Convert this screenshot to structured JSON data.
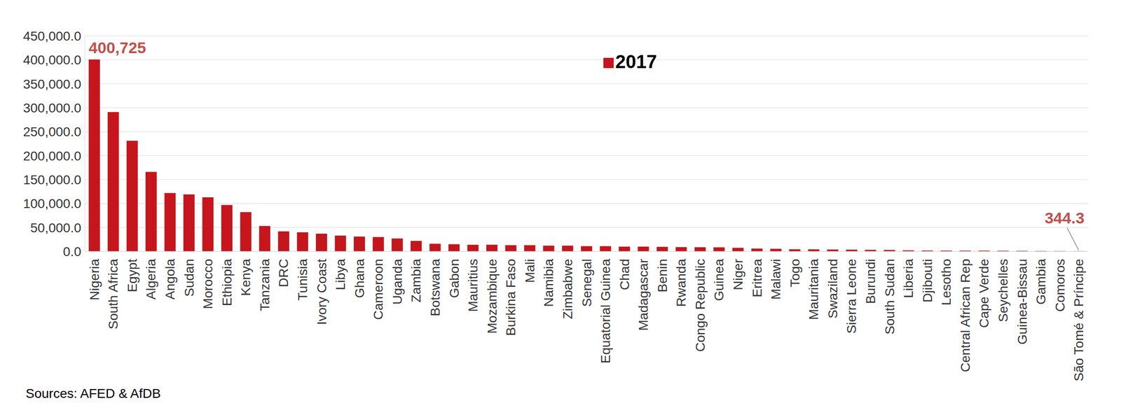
{
  "chart_data": {
    "type": "bar",
    "source": "Sources: AFED & AfDB",
    "categories": [
      "Nigeria",
      "South Africa",
      "Egypt",
      "Algeria",
      "Angola",
      "Sudan",
      "Morocco",
      "Ethiopia",
      "Kenya",
      "Tanzania",
      "DRC",
      "Tunisia",
      "Ivory Coast",
      "Libya",
      "Ghana",
      "Cameroon",
      "Uganda",
      "Zambia",
      "Botswana",
      "Gabon",
      "Mauritius",
      "Mozambique",
      "Burkina Faso",
      "Mali",
      "Namibia",
      "Zimbabwe",
      "Senegal",
      "Equatorial Guinea",
      "Chad",
      "Madagascar",
      "Benin",
      "Rwanda",
      "Congo Republic",
      "Guinea",
      "Niger",
      "Eritrea",
      "Malawi",
      "Togo",
      "Mauritania",
      "Swaziland",
      "Sierra Leone",
      "Burundi",
      "South Sudan",
      "Liberia",
      "Djibouti",
      "Lesotho",
      "Central African Rep",
      "Cape Verde",
      "Seychelles",
      "Guinea-Bissau",
      "Gambia",
      "Comoros",
      "São Tomé & Príncipe"
    ],
    "series": [
      {
        "name": "2017",
        "color": "#c4161c",
        "values": [
          400725,
          291000,
          231000,
          166000,
          122000,
          119000,
          113000,
          97000,
          82000,
          53000,
          42000,
          40000,
          37000,
          33000,
          31000,
          30000,
          27000,
          22000,
          16000,
          15000,
          14000,
          14000,
          13000,
          13000,
          12000,
          12000,
          11000,
          11000,
          10000,
          10000,
          9500,
          9000,
          8700,
          8500,
          7500,
          6000,
          5500,
          4500,
          4400,
          4000,
          3700,
          3300,
          3000,
          2300,
          1900,
          1800,
          1700,
          1700,
          1500,
          1300,
          1000,
          600,
          344.3
        ]
      }
    ],
    "annotations": [
      {
        "category": "Nigeria",
        "text": "400,725"
      },
      {
        "category": "São Tomé & Príncipe",
        "text": "344.3"
      }
    ],
    "ylim": [
      0,
      450000
    ],
    "yticks": [
      {
        "value": 0,
        "label": "0.0"
      },
      {
        "value": 50000,
        "label": "50,000.0"
      },
      {
        "value": 100000,
        "label": "100,000.0"
      },
      {
        "value": 150000,
        "label": "150,000.0"
      },
      {
        "value": 200000,
        "label": "200,000.0"
      },
      {
        "value": 250000,
        "label": "250,000.0"
      },
      {
        "value": 300000,
        "label": "300,000.0"
      },
      {
        "value": 350000,
        "label": "350,000.0"
      },
      {
        "value": 400000,
        "label": "400,000.0"
      },
      {
        "value": 450000,
        "label": "450,000.0"
      }
    ],
    "grid": true,
    "legend": "top"
  }
}
